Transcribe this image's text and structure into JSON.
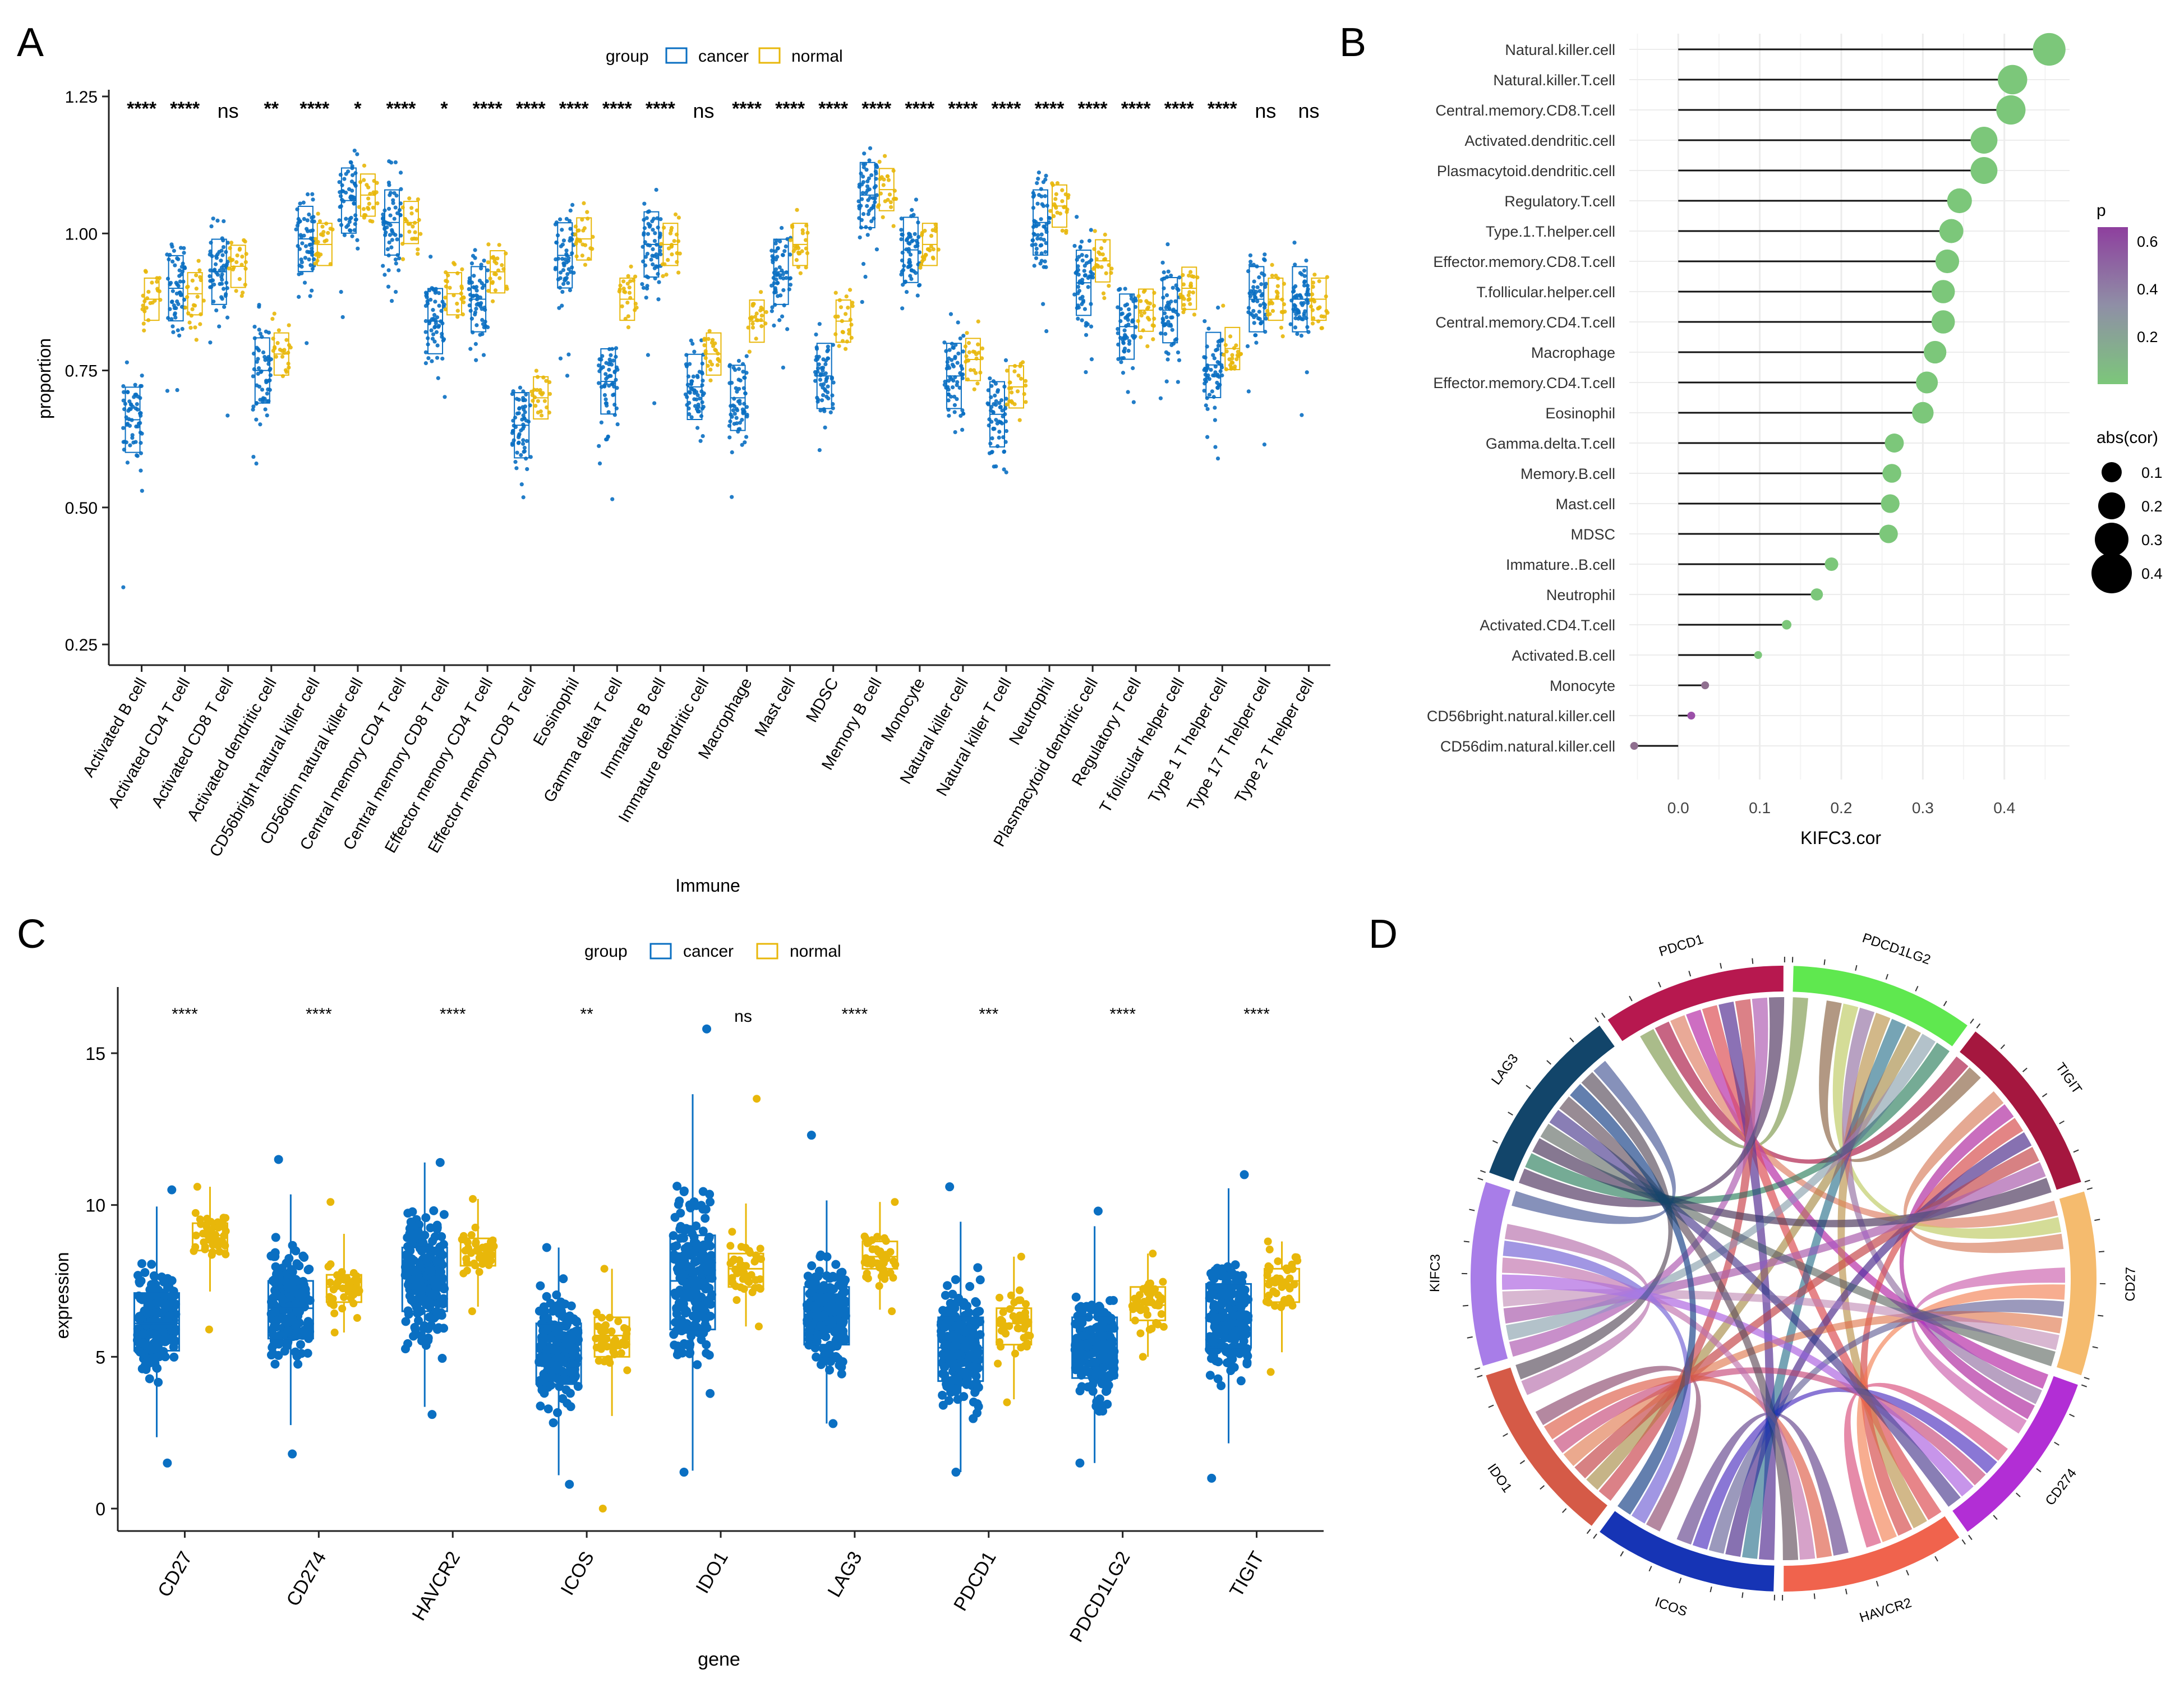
{
  "colors": {
    "cancer": "#0a6fc2",
    "normal": "#e8b70a",
    "green": "#7cc77a",
    "purple": "#9b4fa8"
  },
  "chart_data": [
    {
      "id": "A",
      "panel_label": "A",
      "type": "box",
      "title": "",
      "xlabel": "Immune",
      "ylabel": "proportion",
      "ylim": [
        0.2,
        1.25
      ],
      "yticks": [
        "0.25",
        "0.50",
        "0.75",
        "1.00",
        "1.25"
      ],
      "legend": {
        "title": "group",
        "items": [
          "cancer",
          "normal"
        ],
        "placement": "top"
      },
      "categories": [
        "Activated B cell",
        "Activated CD4 T cell",
        "Activated CD8 T cell",
        "Activated dendritic cell",
        "CD56bright natural killer cell",
        "CD56dim natural killer cell",
        "Central memory CD4 T cell",
        "Central memory CD8 T cell",
        "Effector memory CD4 T cell",
        "Effector memory CD8 T cell",
        "Eosinophil",
        "Gamma delta T cell",
        "Immature B cell",
        "Immature dendritic cell",
        "Macrophage",
        "Mast cell",
        "MDSC",
        "Memory B cell",
        "Monocyte",
        "Natural killer cell",
        "Natural killer T cell",
        "Neutrophil",
        "Plasmacytoid dendritic cell",
        "Regulatory T cell",
        "T follicular helper cell",
        "Type 1 T helper cell",
        "Type 17 T helper cell",
        "Type 2 T helper cell"
      ],
      "significance": [
        "****",
        "****",
        "ns",
        "**",
        "****",
        "*",
        "****",
        "*",
        "****",
        "****",
        "****",
        "****",
        "****",
        "ns",
        "****",
        "****",
        "****",
        "****",
        "****",
        "****",
        "****",
        "****",
        "****",
        "****",
        "****",
        "****",
        "ns",
        "ns"
      ],
      "series": [
        {
          "name": "cancer",
          "median": [
            0.66,
            0.9,
            0.93,
            0.75,
            0.99,
            1.06,
            1.02,
            0.84,
            0.88,
            0.65,
            0.96,
            0.73,
            0.98,
            0.72,
            0.7,
            0.93,
            0.74,
            1.07,
            0.97,
            0.74,
            0.67,
            1.02,
            0.91,
            0.83,
            0.86,
            0.76,
            0.88,
            0.88
          ]
        },
        {
          "name": "normal",
          "median": [
            0.88,
            0.89,
            0.94,
            0.78,
            0.98,
            1.07,
            1.02,
            0.89,
            0.93,
            0.7,
            0.99,
            0.88,
            0.98,
            0.78,
            0.84,
            0.98,
            0.84,
            1.08,
            0.98,
            0.77,
            0.72,
            1.05,
            0.95,
            0.86,
            0.9,
            0.79,
            0.88,
            0.88
          ]
        }
      ]
    },
    {
      "id": "B",
      "panel_label": "B",
      "type": "lollipop",
      "xlabel": "KIFC3.cor",
      "xlim": [
        -0.06,
        0.48
      ],
      "xticks": [
        "0.0",
        "0.1",
        "0.2",
        "0.3",
        "0.4"
      ],
      "categories": [
        "Natural.killer.cell",
        "Natural.killer.T.cell",
        "Central.memory.CD8.T.cell",
        "Activated.dendritic.cell",
        "Plasmacytoid.dendritic.cell",
        "Regulatory.T.cell",
        "Type.1.T.helper.cell",
        "Effector.memory.CD8.T.cell",
        "T.follicular.helper.cell",
        "Central.memory.CD4.T.cell",
        "Macrophage",
        "Effector.memory.CD4.T.cell",
        "Eosinophil",
        "Gamma.delta.T.cell",
        "Memory.B.cell",
        "Mast.cell",
        "MDSC",
        "Immature..B.cell",
        "Neutrophil",
        "Activated.CD4.T.cell",
        "Activated.B.cell",
        "Monocyte",
        "CD56bright.natural.killer.cell",
        "CD56dim.natural.killer.cell"
      ],
      "values": [
        0.455,
        0.41,
        0.408,
        0.375,
        0.375,
        0.345,
        0.335,
        0.33,
        0.325,
        0.325,
        0.315,
        0.305,
        0.3,
        0.265,
        0.262,
        0.26,
        0.258,
        0.188,
        0.17,
        0.133,
        0.098,
        0.033,
        0.016,
        -0.054
      ],
      "p_values": [
        0.0,
        0.0,
        0.0,
        0.0,
        0.0,
        0.0,
        0.0,
        0.0,
        0.0,
        0.0,
        0.0,
        0.0,
        0.0,
        0.0,
        0.0,
        0.0,
        0.0,
        0.0,
        0.0,
        0.0,
        0.0,
        0.35,
        0.68,
        0.15
      ],
      "legend_p": {
        "title": "p",
        "ticks": [
          "0.6",
          "0.4",
          "0.2"
        ]
      },
      "legend_size": {
        "title": "abs(cor)",
        "ticks": [
          "0.1",
          "0.2",
          "0.3",
          "0.4"
        ]
      }
    },
    {
      "id": "C",
      "panel_label": "C",
      "type": "box",
      "xlabel": "gene",
      "ylabel": "expression",
      "ylim": [
        0,
        16.5
      ],
      "yticks": [
        "0",
        "5",
        "10",
        "15"
      ],
      "legend": {
        "title": "group",
        "items": [
          "cancer",
          "normal"
        ],
        "placement": "top"
      },
      "categories": [
        "CD27",
        "CD274",
        "HAVCR2",
        "ICOS",
        "IDO1",
        "LAG3",
        "PDCD1",
        "PDCD1LG2",
        "TIGIT"
      ],
      "significance": [
        "****",
        "****",
        "****",
        "**",
        "ns",
        "****",
        "***",
        "****",
        "****"
      ],
      "series": [
        {
          "name": "cancer",
          "q1": [
            5.2,
            5.6,
            6.5,
            4.1,
            5.9,
            5.4,
            4.2,
            4.3,
            5.3
          ],
          "median": [
            6.1,
            6.6,
            7.6,
            5.2,
            7.5,
            6.4,
            5.3,
            5.3,
            6.2
          ],
          "q3": [
            7.1,
            7.5,
            8.6,
            6.1,
            9.0,
            7.3,
            6.3,
            6.3,
            7.4
          ],
          "range": [
            [
              1.5,
              10.5
            ],
            [
              1.8,
              11.5
            ],
            [
              3.1,
              11.4
            ],
            [
              0.8,
              8.6
            ],
            [
              1.2,
              15.8
            ],
            [
              2.8,
              12.3
            ],
            [
              1.2,
              10.6
            ],
            [
              1.5,
              9.8
            ],
            [
              1.0,
              11.0
            ]
          ]
        },
        {
          "name": "normal",
          "q1": [
            8.5,
            6.8,
            8.0,
            5.0,
            7.3,
            7.9,
            5.4,
            6.2,
            6.8
          ],
          "median": [
            9.0,
            7.3,
            8.5,
            5.7,
            7.9,
            8.3,
            6.1,
            6.7,
            7.5
          ],
          "q3": [
            9.4,
            7.7,
            8.9,
            6.3,
            8.4,
            8.8,
            6.6,
            7.3,
            7.9
          ],
          "range": [
            [
              5.9,
              10.6
            ],
            [
              5.8,
              10.1
            ],
            [
              6.5,
              10.2
            ],
            [
              0.0,
              7.9
            ],
            [
              6.0,
              13.5
            ],
            [
              6.5,
              10.1
            ],
            [
              3.5,
              8.3
            ],
            [
              5.0,
              8.4
            ],
            [
              4.5,
              8.8
            ]
          ]
        }
      ]
    },
    {
      "id": "D",
      "panel_label": "D",
      "type": "chord",
      "sectors": [
        {
          "name": "PDCD1",
          "color": "#b7184f"
        },
        {
          "name": "PDCD1LG2",
          "color": "#5fe84f"
        },
        {
          "name": "TIGIT",
          "color": "#a5173f"
        },
        {
          "name": "CD27",
          "color": "#f5bb6e"
        },
        {
          "name": "CD274",
          "color": "#b22ed5"
        },
        {
          "name": "HAVCR2",
          "color": "#f0634d"
        },
        {
          "name": "ICOS",
          "color": "#1634b5"
        },
        {
          "name": "IDO1",
          "color": "#d55a47"
        },
        {
          "name": "KIFC3",
          "color": "#a87de8"
        },
        {
          "name": "LAG3",
          "color": "#12456a"
        }
      ]
    }
  ]
}
